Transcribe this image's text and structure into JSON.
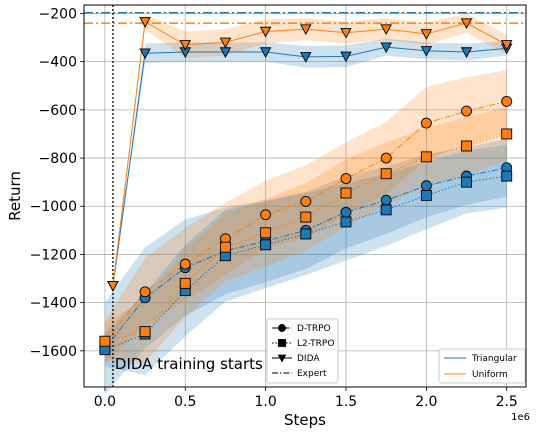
{
  "chart_data": {
    "type": "line",
    "xlabel": "Steps",
    "ylabel": "Return",
    "x_offset_label": "1e6",
    "xlim": [
      -0.13,
      2.62
    ],
    "ylim": [
      -1750,
      -165
    ],
    "xticks": [
      0.0,
      0.5,
      1.0,
      1.5,
      2.0,
      2.5
    ],
    "xtick_labels": [
      "0.0",
      "0.5",
      "1.0",
      "1.5",
      "2.0",
      "2.5"
    ],
    "yticks": [
      -1600,
      -1400,
      -1200,
      -1000,
      -800,
      -600,
      -400,
      -200
    ],
    "ytick_labels": [
      "−1600",
      "−1400",
      "−1200",
      "−1000",
      "−800",
      "−600",
      "−400",
      "−200"
    ],
    "grid": true,
    "colors": {
      "triangular": "#1f77b4",
      "uniform": "#ff7f0e"
    },
    "expert": {
      "triangular": -197,
      "uniform": -240
    },
    "dida_start": {
      "x": 0.05,
      "label": "DIDA training starts"
    },
    "series": [
      {
        "name": "D-TRPO",
        "family": "Triangular",
        "marker": "circle",
        "linestyle": "dashdot",
        "x": [
          0.0,
          0.25,
          0.5,
          0.75,
          1.0,
          1.25,
          1.5,
          1.75,
          2.0,
          2.25,
          2.5
        ],
        "y": [
          -1590,
          -1380,
          -1255,
          -1185,
          -1145,
          -1100,
          -1025,
          -975,
          -915,
          -875,
          -840
        ],
        "band": [
          190,
          210,
          200,
          180,
          170,
          160,
          150,
          140,
          130,
          120,
          120
        ]
      },
      {
        "name": "D-TRPO",
        "family": "Uniform",
        "marker": "circle",
        "linestyle": "dashdot",
        "x": [
          0.0,
          0.25,
          0.5,
          0.75,
          1.0,
          1.25,
          1.5,
          1.75,
          2.0,
          2.25,
          2.5
        ],
        "y": [
          -1565,
          -1355,
          -1240,
          -1135,
          -1035,
          -980,
          -885,
          -800,
          -655,
          -605,
          -565
        ],
        "band": [
          90,
          140,
          150,
          150,
          140,
          150,
          150,
          150,
          150,
          140,
          130
        ]
      },
      {
        "name": "L2-TRPO",
        "family": "Triangular",
        "marker": "square",
        "linestyle": "dotted",
        "x": [
          0.0,
          0.25,
          0.5,
          0.75,
          1.0,
          1.25,
          1.5,
          1.75,
          2.0,
          2.25,
          2.5
        ],
        "y": [
          -1595,
          -1530,
          -1350,
          -1205,
          -1160,
          -1115,
          -1065,
          -1015,
          -955,
          -900,
          -875
        ],
        "band": [
          70,
          170,
          190,
          190,
          180,
          170,
          160,
          150,
          140,
          130,
          130
        ]
      },
      {
        "name": "L2-TRPO",
        "family": "Uniform",
        "marker": "square",
        "linestyle": "dotted",
        "x": [
          0.0,
          0.25,
          0.5,
          0.75,
          1.0,
          1.25,
          1.5,
          1.75,
          2.0,
          2.25,
          2.5
        ],
        "y": [
          -1560,
          -1520,
          -1320,
          -1170,
          -1110,
          -1045,
          -945,
          -865,
          -795,
          -750,
          -700
        ],
        "band": [
          80,
          130,
          140,
          140,
          140,
          140,
          140,
          130,
          120,
          120,
          110
        ]
      },
      {
        "name": "DIDA",
        "family": "Triangular",
        "marker": "triangle-down",
        "linestyle": "solid",
        "x": [
          0.05,
          0.25,
          0.5,
          0.75,
          1.0,
          1.25,
          1.5,
          1.75,
          2.0,
          2.25,
          2.5
        ],
        "y": [
          -1330,
          -365,
          -360,
          -360,
          -360,
          -380,
          -378,
          -340,
          -355,
          -360,
          -345
        ],
        "band": [
          0,
          40,
          40,
          40,
          40,
          45,
          45,
          35,
          35,
          35,
          30
        ]
      },
      {
        "name": "DIDA",
        "family": "Uniform",
        "marker": "triangle-down",
        "linestyle": "solid",
        "x": [
          0.05,
          0.25,
          0.5,
          0.75,
          1.0,
          1.25,
          1.5,
          1.75,
          2.0,
          2.25,
          2.5
        ],
        "y": [
          -1330,
          -235,
          -330,
          -320,
          -275,
          -265,
          -280,
          -265,
          -285,
          -240,
          -330
        ],
        "band": [
          0,
          30,
          55,
          55,
          50,
          45,
          45,
          45,
          45,
          40,
          40
        ]
      }
    ],
    "legend_styles": [
      {
        "label": "D-TRPO",
        "marker": "circle",
        "linestyle": "dashdot"
      },
      {
        "label": "L2-TRPO",
        "marker": "square",
        "linestyle": "dotted"
      },
      {
        "label": "DIDA",
        "marker": "triangle-down",
        "linestyle": "solid"
      },
      {
        "label": "Expert",
        "marker": "none",
        "linestyle": "dashdot"
      }
    ],
    "legend_colors": [
      {
        "label": "Triangular",
        "color": "#1f77b4"
      },
      {
        "label": "Uniform",
        "color": "#ff7f0e"
      }
    ],
    "legend_styles_position": "lower-center",
    "legend_colors_position": "lower-right"
  }
}
